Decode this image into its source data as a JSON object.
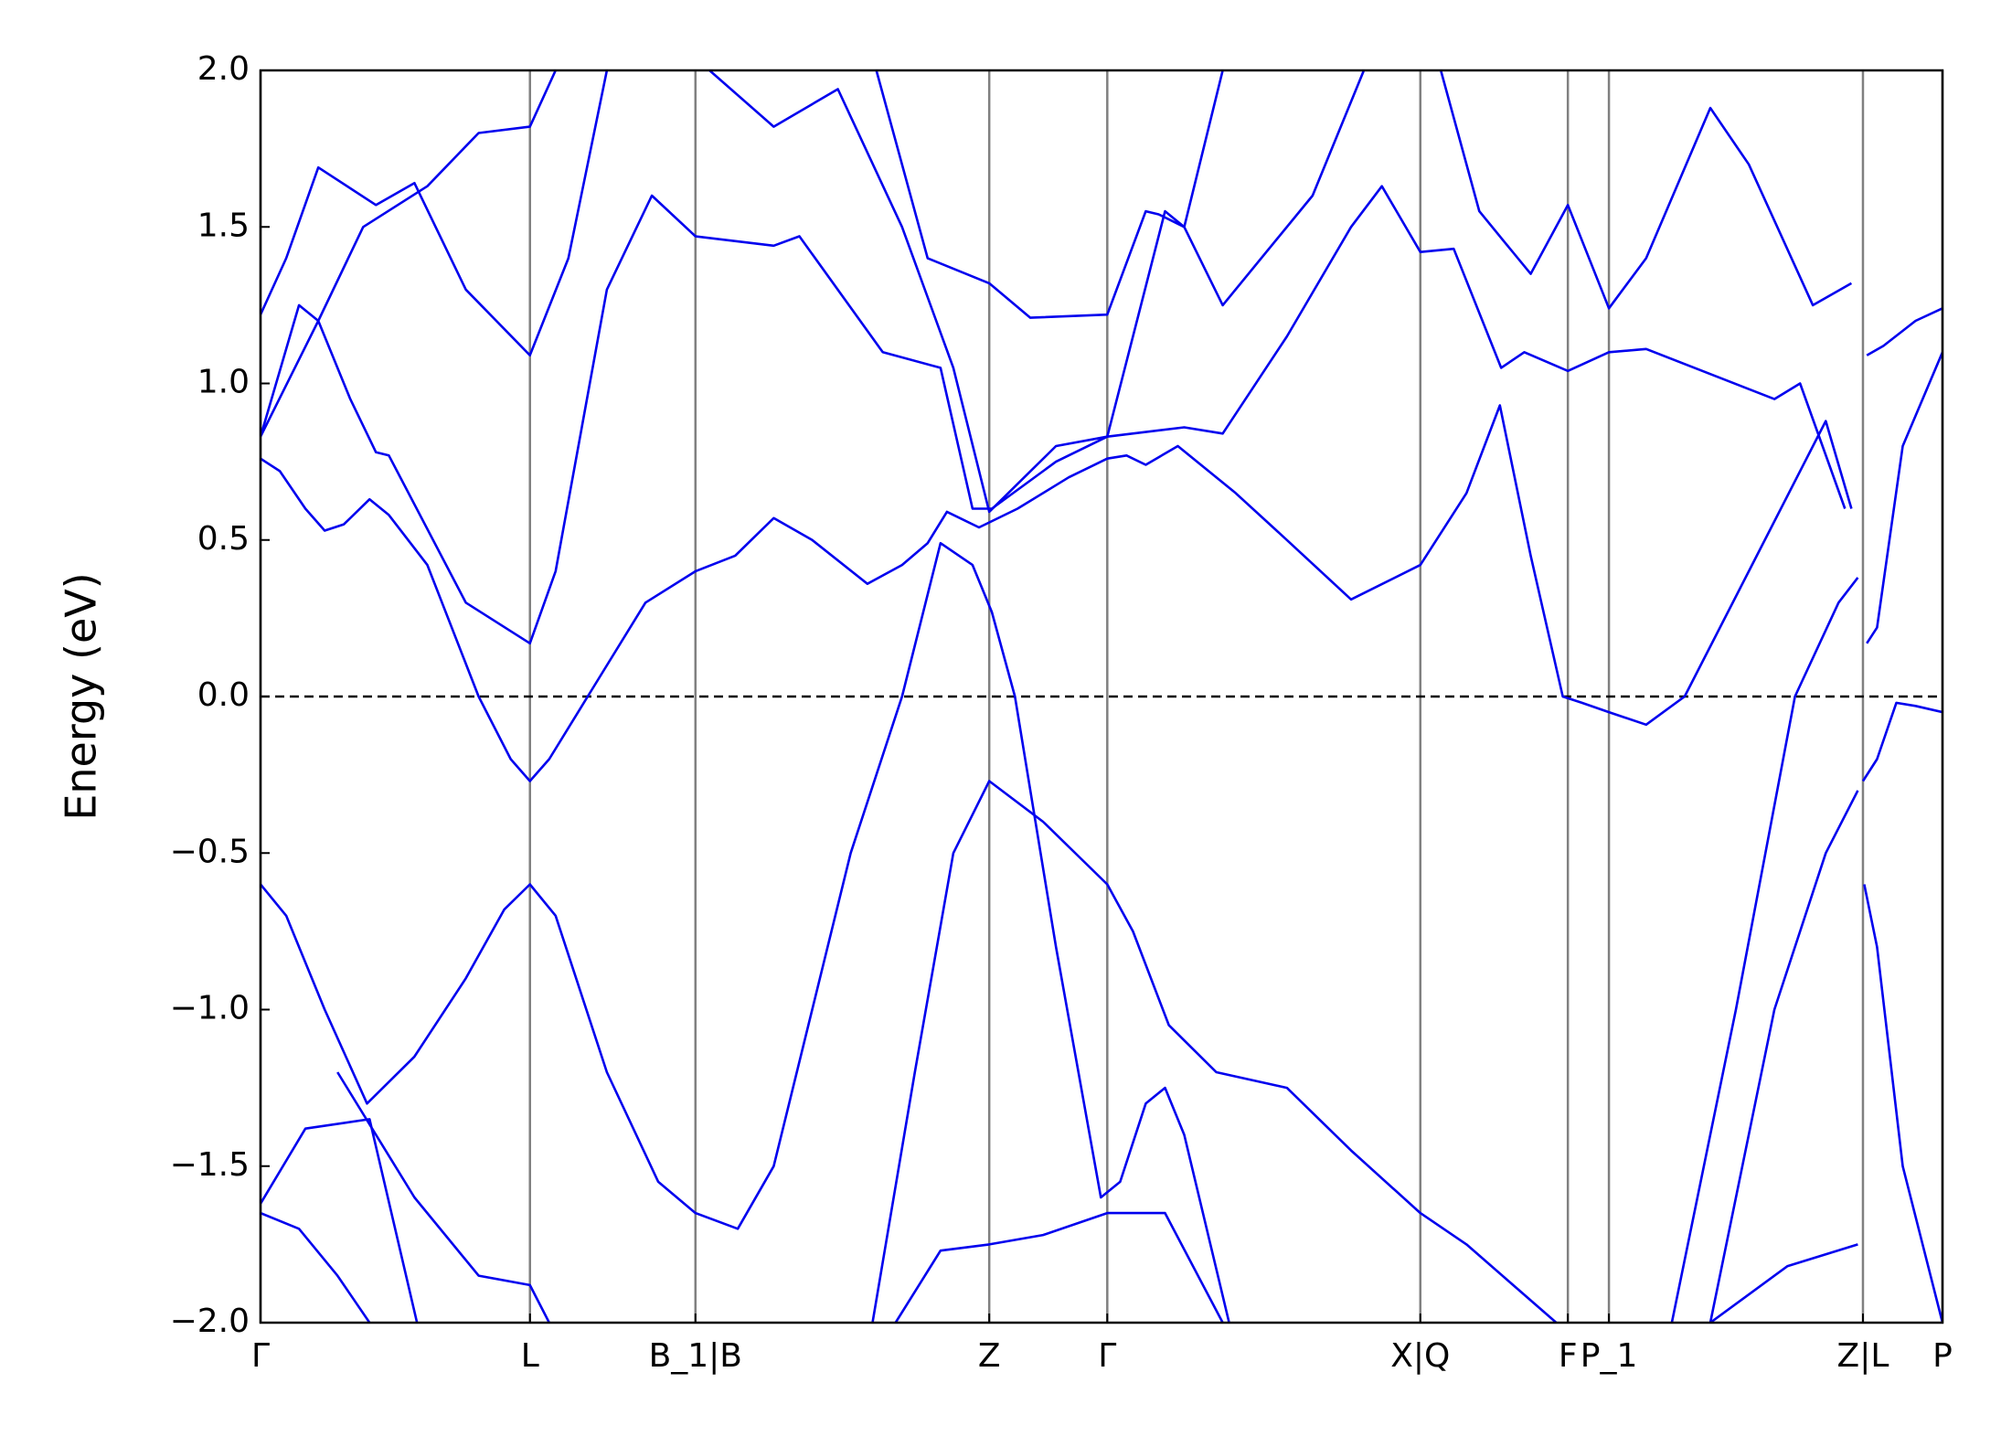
{
  "chart_data": {
    "type": "line",
    "ylabel": "Energy (eV)",
    "color": "#0000ee",
    "xlim": [
      0,
      13.11
    ],
    "ylim": [
      -2.0,
      2.0
    ],
    "xticks": [
      {
        "value": 0,
        "label": "Γ"
      },
      {
        "value": 2.1,
        "label": "L"
      },
      {
        "value": 3.39,
        "label": "B_1|B"
      },
      {
        "value": 5.68,
        "label": "Z"
      },
      {
        "value": 6.6,
        "label": "Γ"
      },
      {
        "value": 9.04,
        "label": "X|Q"
      },
      {
        "value": 10.19,
        "label": "F"
      },
      {
        "value": 10.51,
        "label": "P_1"
      },
      {
        "value": 12.49,
        "label": "Z|L"
      },
      {
        "value": 13.11,
        "label": "P"
      }
    ],
    "yticks": [
      {
        "value": 2.0,
        "label": "2.0"
      },
      {
        "value": 1.5,
        "label": "1.5"
      },
      {
        "value": 1.0,
        "label": "1.0"
      },
      {
        "value": 0.5,
        "label": "0.5"
      },
      {
        "value": 0.0,
        "label": "0.0"
      },
      {
        "value": -0.5,
        "label": "−0.5"
      },
      {
        "value": -1.0,
        "label": "−1.0"
      },
      {
        "value": -1.5,
        "label": "−1.5"
      },
      {
        "value": -2.0,
        "label": "−2.0"
      }
    ],
    "x_grid": true,
    "hline": 0,
    "series": [
      {
        "x": [
          0,
          0.15,
          0.35,
          0.5,
          0.65,
          0.85,
          1.0,
          1.3,
          1.7,
          1.95,
          2.1,
          2.25,
          2.55,
          3.0,
          3.39,
          3.7,
          4.0,
          4.3,
          4.73,
          5.0,
          5.2,
          5.35,
          5.6,
          5.9,
          6.3,
          6.6,
          6.75,
          6.9,
          7.15,
          7.6,
          8.0,
          8.5,
          9.04,
          9.4,
          9.66,
          9.9,
          10.15,
          10.3,
          10.51,
          10.8,
          11.1,
          11.6,
          12.2,
          12.4
        ],
        "values": [
          0.76,
          0.72,
          0.6,
          0.53,
          0.55,
          0.63,
          0.58,
          0.42,
          0.0,
          -0.2,
          -0.27,
          -0.2,
          0.0,
          0.3,
          0.4,
          0.45,
          0.57,
          0.5,
          0.36,
          0.42,
          0.49,
          0.59,
          0.54,
          0.6,
          0.7,
          0.76,
          0.77,
          0.74,
          0.8,
          0.65,
          0.5,
          0.31,
          0.42,
          0.65,
          0.93,
          0.45,
          0.0,
          -0.02,
          -0.05,
          -0.09,
          0.0,
          0.4,
          0.88,
          0.6
        ]
      },
      {
        "x": [
          0,
          0.2,
          0.5,
          0.83,
          1.2,
          1.6,
          1.9,
          2.1,
          2.3,
          2.7,
          3.1,
          3.39,
          3.72,
          4.0,
          4.6,
          5.0,
          5.3,
          5.55,
          5.7,
          5.88,
          6.2,
          6.55,
          6.7,
          6.9,
          7.05,
          7.2,
          7.55
        ],
        "values": [
          -0.6,
          -0.7,
          -1.0,
          -1.3,
          -1.15,
          -0.9,
          -0.68,
          -0.6,
          -0.7,
          -1.2,
          -1.55,
          -1.65,
          -1.7,
          -1.5,
          -0.5,
          0.0,
          0.49,
          0.42,
          0.27,
          0.0,
          -0.8,
          -1.6,
          -1.55,
          -1.3,
          -1.25,
          -1.4,
          -2.0
        ]
      },
      {
        "x": [
          4.77,
          5.1,
          5.4,
          5.68,
          6.1,
          6.6,
          6.8,
          7.08,
          7.45,
          8.0,
          8.5,
          9.04,
          9.4,
          10.1
        ],
        "values": [
          -2.0,
          -1.2,
          -0.5,
          -0.27,
          -0.4,
          -0.6,
          -0.75,
          -1.05,
          -1.2,
          -1.25,
          -1.45,
          -1.65,
          -1.75,
          -2.0
        ]
      },
      {
        "x": [
          0,
          0.3,
          0.45,
          0.7,
          0.9,
          1.0,
          1.6,
          2.1,
          2.3,
          2.7,
          3.05,
          3.39,
          4.0,
          4.2,
          4.85,
          5.3,
          5.55,
          5.7,
          6.2,
          6.6,
          7.2,
          7.5,
          8.0,
          8.5,
          8.74,
          9.04,
          9.3,
          9.67,
          9.85,
          10.19,
          10.51,
          10.8,
          11.8,
          12.0,
          12.35
        ],
        "values": [
          0.83,
          1.25,
          1.2,
          0.95,
          0.78,
          0.77,
          0.3,
          0.17,
          0.4,
          1.3,
          1.6,
          1.47,
          1.44,
          1.47,
          1.1,
          1.05,
          0.6,
          0.6,
          0.75,
          0.83,
          0.86,
          0.84,
          1.15,
          1.5,
          1.63,
          1.42,
          1.43,
          1.05,
          1.1,
          1.04,
          1.1,
          1.11,
          0.95,
          1.0,
          0.6
        ]
      },
      {
        "x": [
          0,
          0.45,
          0.8,
          1.3,
          1.7,
          2.1,
          2.3
        ],
        "values": [
          0.83,
          1.2,
          1.5,
          1.63,
          1.8,
          1.82,
          2.0
        ]
      },
      {
        "x": [
          0,
          0.2,
          0.45,
          0.9,
          1.2,
          1.6,
          2.1,
          2.4,
          2.7
        ],
        "values": [
          1.22,
          1.4,
          1.69,
          1.57,
          1.64,
          1.3,
          1.09,
          1.4,
          2.0
        ]
      },
      {
        "x": [
          3.5,
          4.0,
          4.5,
          5.0,
          5.4,
          5.68,
          6.2,
          6.6,
          7.05,
          7.2,
          7.5,
          8.2,
          8.6
        ],
        "values": [
          2.0,
          1.82,
          1.94,
          1.5,
          1.05,
          0.59,
          0.8,
          0.83,
          1.55,
          1.5,
          1.25,
          1.6,
          2.0
        ]
      },
      {
        "x": [
          4.8,
          5.2,
          5.68,
          6.0,
          6.6,
          6.9,
          7.0,
          7.2,
          7.5
        ],
        "values": [
          2.0,
          1.4,
          1.32,
          1.21,
          1.22,
          1.55,
          1.54,
          1.5,
          2.0
        ]
      },
      {
        "x": [
          9.2,
          9.5,
          9.7,
          9.9,
          10.19,
          10.51,
          10.8,
          11.3,
          11.6,
          12.1,
          12.4
        ],
        "values": [
          2.0,
          1.55,
          1.45,
          1.35,
          1.57,
          1.24,
          1.4,
          1.88,
          1.7,
          1.25,
          1.32
        ]
      },
      {
        "x": [
          0,
          0.35,
          0.85,
          1.22
        ],
        "values": [
          -1.62,
          -1.38,
          -1.35,
          -2.0
        ]
      },
      {
        "x": [
          0,
          0.3,
          0.6,
          0.85
        ],
        "values": [
          -1.65,
          -1.7,
          -1.85,
          -2.0
        ]
      },
      {
        "x": [
          0.6,
          1.2,
          1.7,
          2.1,
          2.25
        ],
        "values": [
          -1.2,
          -1.6,
          -1.85,
          -1.88,
          -2.0
        ]
      },
      {
        "x": [
          4.95,
          5.3,
          5.68,
          6.1,
          6.6,
          7.05,
          7.5
        ],
        "values": [
          -2.0,
          -1.77,
          -1.75,
          -1.72,
          -1.65,
          -1.65,
          -2.0
        ]
      },
      {
        "x": [
          11.0,
          11.5,
          11.96,
          12.3,
          12.45
        ],
        "values": [
          -2.0,
          -1.0,
          0.0,
          0.3,
          0.38
        ]
      },
      {
        "x": [
          11.3,
          11.8,
          12.2,
          12.45
        ],
        "values": [
          -2.0,
          -1.0,
          -0.5,
          -0.3
        ]
      },
      {
        "x": [
          11.3,
          11.9,
          12.45
        ],
        "values": [
          -2.0,
          -1.82,
          -1.75
        ]
      },
      {
        "x": [
          12.52,
          12.6,
          12.8,
          13.11
        ],
        "values": [
          0.17,
          0.22,
          0.8,
          1.1
        ]
      },
      {
        "x": [
          12.49,
          12.6,
          12.75,
          12.9,
          13.11
        ],
        "values": [
          -0.27,
          -0.2,
          -0.02,
          -0.03,
          -0.05
        ]
      },
      {
        "x": [
          12.5,
          12.6,
          12.8,
          13.11
        ],
        "values": [
          -0.6,
          -0.8,
          -1.5,
          -2.0
        ]
      },
      {
        "x": [
          12.52,
          12.65,
          12.9,
          13.11
        ],
        "values": [
          1.09,
          1.12,
          1.2,
          1.24
        ]
      }
    ]
  }
}
